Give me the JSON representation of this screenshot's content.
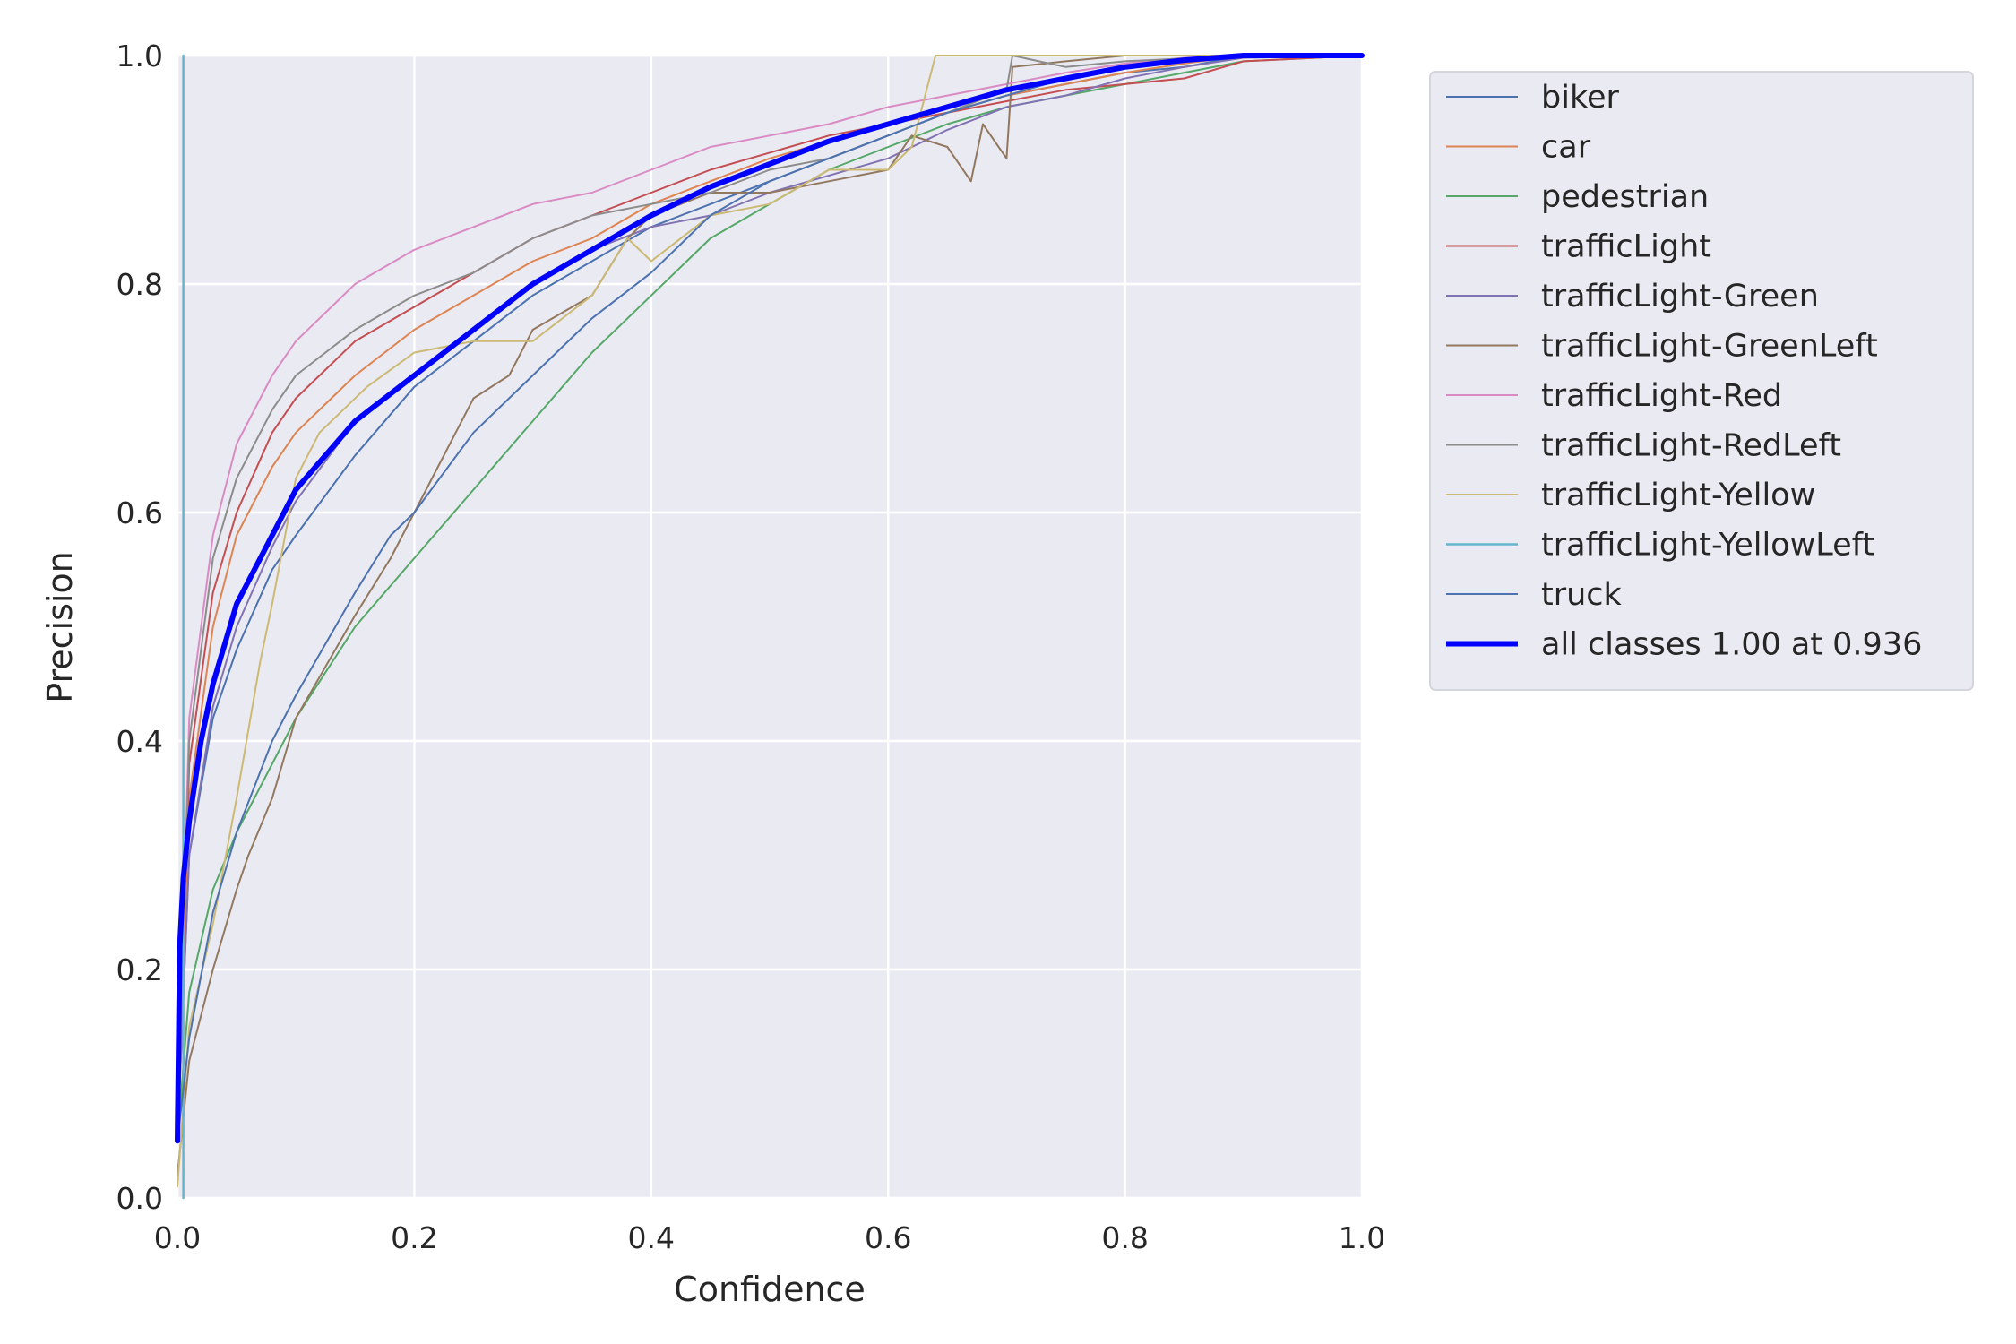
{
  "chart_data": {
    "type": "line",
    "title": "",
    "xlabel": "Confidence",
    "ylabel": "Precision",
    "xlim": [
      0.0,
      1.0
    ],
    "ylim": [
      0.0,
      1.0
    ],
    "xticks": [
      "0.0",
      "0.2",
      "0.4",
      "0.6",
      "0.8",
      "1.0"
    ],
    "yticks": [
      "0.0",
      "0.2",
      "0.4",
      "0.6",
      "0.8",
      "1.0"
    ],
    "grid": true,
    "legend_position": "outside-right-top",
    "background_color": "#eaeaf2",
    "series": [
      {
        "name": "biker",
        "color": "#4c72b0",
        "width": 2,
        "points": [
          [
            0,
            0.05
          ],
          [
            0.01,
            0.3
          ],
          [
            0.03,
            0.42
          ],
          [
            0.05,
            0.48
          ],
          [
            0.08,
            0.55
          ],
          [
            0.1,
            0.58
          ],
          [
            0.15,
            0.65
          ],
          [
            0.2,
            0.71
          ],
          [
            0.25,
            0.75
          ],
          [
            0.3,
            0.79
          ],
          [
            0.35,
            0.82
          ],
          [
            0.4,
            0.85
          ],
          [
            0.45,
            0.87
          ],
          [
            0.5,
            0.89
          ],
          [
            0.55,
            0.91
          ],
          [
            0.6,
            0.93
          ],
          [
            0.65,
            0.95
          ],
          [
            0.7,
            0.965
          ],
          [
            0.75,
            0.975
          ],
          [
            0.8,
            0.985
          ],
          [
            0.85,
            0.99
          ],
          [
            0.9,
            1.0
          ],
          [
            1.0,
            1.0
          ]
        ]
      },
      {
        "name": "car",
        "color": "#dd8452",
        "width": 2,
        "points": [
          [
            0,
            0.05
          ],
          [
            0.01,
            0.35
          ],
          [
            0.03,
            0.5
          ],
          [
            0.05,
            0.58
          ],
          [
            0.08,
            0.64
          ],
          [
            0.1,
            0.67
          ],
          [
            0.15,
            0.72
          ],
          [
            0.2,
            0.76
          ],
          [
            0.25,
            0.79
          ],
          [
            0.3,
            0.82
          ],
          [
            0.35,
            0.84
          ],
          [
            0.4,
            0.87
          ],
          [
            0.45,
            0.89
          ],
          [
            0.5,
            0.91
          ],
          [
            0.55,
            0.925
          ],
          [
            0.6,
            0.94
          ],
          [
            0.65,
            0.95
          ],
          [
            0.7,
            0.965
          ],
          [
            0.75,
            0.975
          ],
          [
            0.8,
            0.985
          ],
          [
            0.85,
            0.993
          ],
          [
            0.9,
            1.0
          ],
          [
            1.0,
            1.0
          ]
        ]
      },
      {
        "name": "pedestrian",
        "color": "#55a868",
        "width": 2,
        "points": [
          [
            0,
            0.05
          ],
          [
            0.01,
            0.18
          ],
          [
            0.03,
            0.27
          ],
          [
            0.05,
            0.32
          ],
          [
            0.08,
            0.38
          ],
          [
            0.1,
            0.42
          ],
          [
            0.15,
            0.5
          ],
          [
            0.2,
            0.56
          ],
          [
            0.25,
            0.62
          ],
          [
            0.3,
            0.68
          ],
          [
            0.35,
            0.74
          ],
          [
            0.4,
            0.79
          ],
          [
            0.45,
            0.84
          ],
          [
            0.5,
            0.87
          ],
          [
            0.55,
            0.9
          ],
          [
            0.6,
            0.92
          ],
          [
            0.65,
            0.94
          ],
          [
            0.7,
            0.955
          ],
          [
            0.75,
            0.965
          ],
          [
            0.8,
            0.975
          ],
          [
            0.85,
            0.985
          ],
          [
            0.9,
            0.995
          ],
          [
            1.0,
            1.0
          ]
        ]
      },
      {
        "name": "trafficLight",
        "color": "#c44e52",
        "width": 2,
        "points": [
          [
            0,
            0.05
          ],
          [
            0.01,
            0.38
          ],
          [
            0.03,
            0.53
          ],
          [
            0.05,
            0.6
          ],
          [
            0.08,
            0.67
          ],
          [
            0.1,
            0.7
          ],
          [
            0.15,
            0.75
          ],
          [
            0.2,
            0.78
          ],
          [
            0.25,
            0.81
          ],
          [
            0.3,
            0.84
          ],
          [
            0.35,
            0.86
          ],
          [
            0.4,
            0.88
          ],
          [
            0.45,
            0.9
          ],
          [
            0.5,
            0.915
          ],
          [
            0.55,
            0.93
          ],
          [
            0.6,
            0.94
          ],
          [
            0.65,
            0.95
          ],
          [
            0.7,
            0.96
          ],
          [
            0.75,
            0.97
          ],
          [
            0.8,
            0.975
          ],
          [
            0.85,
            0.98
          ],
          [
            0.9,
            0.995
          ],
          [
            1.0,
            1.0
          ]
        ]
      },
      {
        "name": "trafficLight-Green",
        "color": "#8172b3",
        "width": 2,
        "points": [
          [
            0,
            0.05
          ],
          [
            0.01,
            0.3
          ],
          [
            0.03,
            0.43
          ],
          [
            0.05,
            0.5
          ],
          [
            0.08,
            0.57
          ],
          [
            0.1,
            0.61
          ],
          [
            0.15,
            0.68
          ],
          [
            0.2,
            0.72
          ],
          [
            0.25,
            0.76
          ],
          [
            0.3,
            0.8
          ],
          [
            0.35,
            0.83
          ],
          [
            0.4,
            0.85
          ],
          [
            0.45,
            0.86
          ],
          [
            0.5,
            0.88
          ],
          [
            0.55,
            0.895
          ],
          [
            0.6,
            0.91
          ],
          [
            0.65,
            0.935
          ],
          [
            0.7,
            0.955
          ],
          [
            0.75,
            0.965
          ],
          [
            0.8,
            0.98
          ],
          [
            0.85,
            0.99
          ],
          [
            0.9,
            0.998
          ],
          [
            1.0,
            1.0
          ]
        ]
      },
      {
        "name": "trafficLight-GreenLeft",
        "color": "#937860",
        "width": 2,
        "points": [
          [
            0,
            0.02
          ],
          [
            0.01,
            0.12
          ],
          [
            0.03,
            0.2
          ],
          [
            0.05,
            0.27
          ],
          [
            0.06,
            0.3
          ],
          [
            0.08,
            0.35
          ],
          [
            0.1,
            0.42
          ],
          [
            0.15,
            0.51
          ],
          [
            0.18,
            0.56
          ],
          [
            0.2,
            0.6
          ],
          [
            0.22,
            0.64
          ],
          [
            0.25,
            0.7
          ],
          [
            0.28,
            0.72
          ],
          [
            0.3,
            0.76
          ],
          [
            0.35,
            0.79
          ],
          [
            0.38,
            0.84
          ],
          [
            0.4,
            0.86
          ],
          [
            0.45,
            0.88
          ],
          [
            0.5,
            0.88
          ],
          [
            0.55,
            0.89
          ],
          [
            0.6,
            0.9
          ],
          [
            0.62,
            0.93
          ],
          [
            0.65,
            0.92
          ],
          [
            0.67,
            0.89
          ],
          [
            0.68,
            0.94
          ],
          [
            0.7,
            0.91
          ],
          [
            0.705,
            0.99
          ],
          [
            0.75,
            0.995
          ],
          [
            0.8,
            1.0
          ],
          [
            1.0,
            1.0
          ]
        ]
      },
      {
        "name": "trafficLight-Red",
        "color": "#da8bc3",
        "width": 2,
        "points": [
          [
            0,
            0.05
          ],
          [
            0.01,
            0.42
          ],
          [
            0.03,
            0.58
          ],
          [
            0.05,
            0.66
          ],
          [
            0.08,
            0.72
          ],
          [
            0.1,
            0.75
          ],
          [
            0.15,
            0.8
          ],
          [
            0.2,
            0.83
          ],
          [
            0.25,
            0.85
          ],
          [
            0.3,
            0.87
          ],
          [
            0.35,
            0.88
          ],
          [
            0.4,
            0.9
          ],
          [
            0.45,
            0.92
          ],
          [
            0.5,
            0.93
          ],
          [
            0.55,
            0.94
          ],
          [
            0.6,
            0.955
          ],
          [
            0.65,
            0.965
          ],
          [
            0.7,
            0.975
          ],
          [
            0.75,
            0.985
          ],
          [
            0.8,
            0.993
          ],
          [
            0.85,
            0.998
          ],
          [
            0.9,
            1.0
          ],
          [
            1.0,
            1.0
          ]
        ]
      },
      {
        "name": "trafficLight-RedLeft",
        "color": "#8c8c8c",
        "width": 2,
        "points": [
          [
            0,
            0.05
          ],
          [
            0.01,
            0.4
          ],
          [
            0.03,
            0.56
          ],
          [
            0.05,
            0.63
          ],
          [
            0.08,
            0.69
          ],
          [
            0.1,
            0.72
          ],
          [
            0.15,
            0.76
          ],
          [
            0.2,
            0.79
          ],
          [
            0.25,
            0.81
          ],
          [
            0.3,
            0.84
          ],
          [
            0.35,
            0.86
          ],
          [
            0.4,
            0.87
          ],
          [
            0.45,
            0.88
          ],
          [
            0.5,
            0.9
          ],
          [
            0.55,
            0.91
          ],
          [
            0.6,
            0.93
          ],
          [
            0.65,
            0.95
          ],
          [
            0.7,
            0.97
          ],
          [
            0.705,
            1.0
          ],
          [
            0.75,
            0.99
          ],
          [
            0.8,
            0.995
          ],
          [
            0.9,
            1.0
          ],
          [
            1.0,
            1.0
          ]
        ]
      },
      {
        "name": "trafficLight-Yellow",
        "color": "#ccb974",
        "width": 2,
        "points": [
          [
            0,
            0.01
          ],
          [
            0.01,
            0.15
          ],
          [
            0.03,
            0.24
          ],
          [
            0.05,
            0.35
          ],
          [
            0.07,
            0.47
          ],
          [
            0.08,
            0.52
          ],
          [
            0.1,
            0.63
          ],
          [
            0.12,
            0.67
          ],
          [
            0.14,
            0.69
          ],
          [
            0.16,
            0.71
          ],
          [
            0.2,
            0.74
          ],
          [
            0.25,
            0.75
          ],
          [
            0.3,
            0.75
          ],
          [
            0.35,
            0.79
          ],
          [
            0.38,
            0.84
          ],
          [
            0.4,
            0.82
          ],
          [
            0.45,
            0.86
          ],
          [
            0.5,
            0.87
          ],
          [
            0.55,
            0.9
          ],
          [
            0.6,
            0.9
          ],
          [
            0.62,
            0.92
          ],
          [
            0.64,
            1.0
          ],
          [
            0.7,
            1.0
          ],
          [
            1.0,
            1.0
          ]
        ]
      },
      {
        "name": "trafficLight-YellowLeft",
        "color": "#64b5cd",
        "width": 2.5,
        "points": [
          [
            0.005,
            0.0
          ],
          [
            0.005,
            1.0
          ]
        ]
      },
      {
        "name": "truck",
        "color": "#4c72b0",
        "width": 2,
        "points": [
          [
            0,
            0.05
          ],
          [
            0.01,
            0.14
          ],
          [
            0.03,
            0.25
          ],
          [
            0.05,
            0.32
          ],
          [
            0.08,
            0.4
          ],
          [
            0.1,
            0.44
          ],
          [
            0.15,
            0.53
          ],
          [
            0.18,
            0.58
          ],
          [
            0.2,
            0.6
          ],
          [
            0.25,
            0.67
          ],
          [
            0.3,
            0.72
          ],
          [
            0.35,
            0.77
          ],
          [
            0.4,
            0.81
          ],
          [
            0.45,
            0.86
          ],
          [
            0.5,
            0.89
          ],
          [
            0.55,
            0.91
          ],
          [
            0.6,
            0.93
          ],
          [
            0.65,
            0.95
          ],
          [
            0.7,
            0.965
          ],
          [
            0.75,
            0.98
          ],
          [
            0.8,
            0.99
          ],
          [
            0.85,
            0.995
          ],
          [
            0.9,
            1.0
          ],
          [
            1.0,
            1.0
          ]
        ]
      },
      {
        "name": "all classes 1.00 at 0.936",
        "color": "#0000ff",
        "width": 6,
        "points": [
          [
            0,
            0.05
          ],
          [
            0.002,
            0.22
          ],
          [
            0.005,
            0.28
          ],
          [
            0.01,
            0.33
          ],
          [
            0.02,
            0.4
          ],
          [
            0.03,
            0.45
          ],
          [
            0.05,
            0.52
          ],
          [
            0.08,
            0.58
          ],
          [
            0.1,
            0.62
          ],
          [
            0.15,
            0.68
          ],
          [
            0.2,
            0.72
          ],
          [
            0.25,
            0.76
          ],
          [
            0.3,
            0.8
          ],
          [
            0.35,
            0.83
          ],
          [
            0.4,
            0.86
          ],
          [
            0.45,
            0.885
          ],
          [
            0.5,
            0.905
          ],
          [
            0.55,
            0.925
          ],
          [
            0.6,
            0.94
          ],
          [
            0.65,
            0.955
          ],
          [
            0.7,
            0.97
          ],
          [
            0.75,
            0.98
          ],
          [
            0.8,
            0.99
          ],
          [
            0.85,
            0.996
          ],
          [
            0.9,
            1.0
          ],
          [
            0.936,
            1.0
          ],
          [
            1.0,
            1.0
          ]
        ]
      }
    ]
  }
}
